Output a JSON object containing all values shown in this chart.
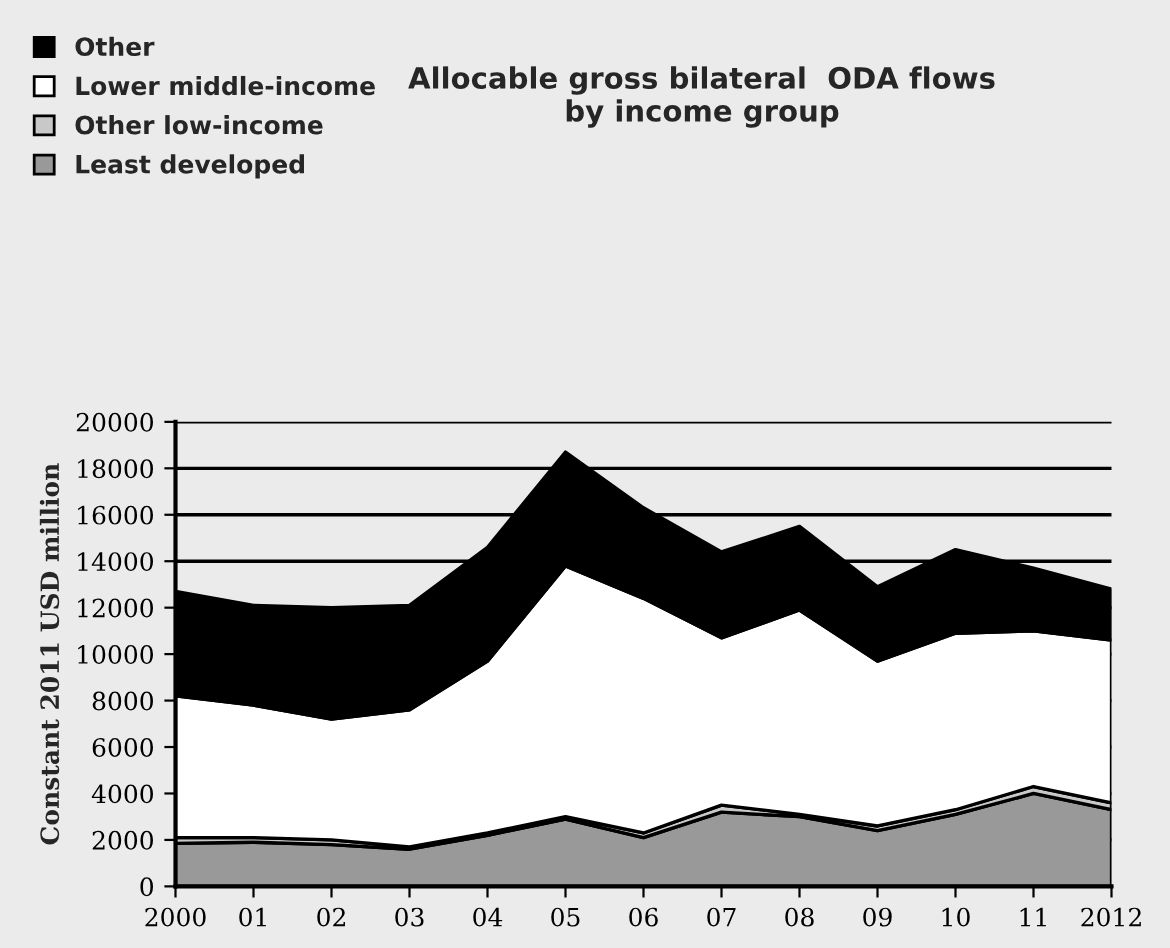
{
  "chart_data": {
    "type": "area",
    "stacked": true,
    "title": "Allocable gross bilateral  ODA flows\nby income group",
    "ylabel": "Constant 2011 USD million",
    "categories": [
      "2000",
      "01",
      "02",
      "03",
      "04",
      "05",
      "06",
      "07",
      "08",
      "09",
      "10",
      "11",
      "2012"
    ],
    "series": [
      {
        "name": "Least developed",
        "color": "#999999",
        "values": [
          1850,
          1900,
          1800,
          1600,
          2200,
          2900,
          2100,
          3200,
          3000,
          2400,
          3100,
          4000,
          3300
        ]
      },
      {
        "name": "Other low-income",
        "color": "#c8c8c8",
        "values": [
          250,
          200,
          200,
          100,
          100,
          100,
          200,
          300,
          100,
          200,
          200,
          300,
          300
        ]
      },
      {
        "name": "Lower middle-income",
        "color": "#ffffff",
        "values": [
          6100,
          5700,
          5200,
          5900,
          7400,
          10800,
          10100,
          7200,
          8800,
          7100,
          7600,
          6700,
          7000
        ]
      },
      {
        "name": "Other",
        "color": "#000000",
        "values": [
          4500,
          4300,
          4800,
          4500,
          4900,
          4900,
          3900,
          3700,
          3600,
          3200,
          3600,
          2700,
          2200
        ]
      }
    ],
    "ylim": [
      0,
      20000
    ],
    "yticks": [
      0,
      2000,
      4000,
      6000,
      8000,
      10000,
      12000,
      14000,
      16000,
      18000,
      20000
    ],
    "grid": "y",
    "legend": "top left"
  }
}
